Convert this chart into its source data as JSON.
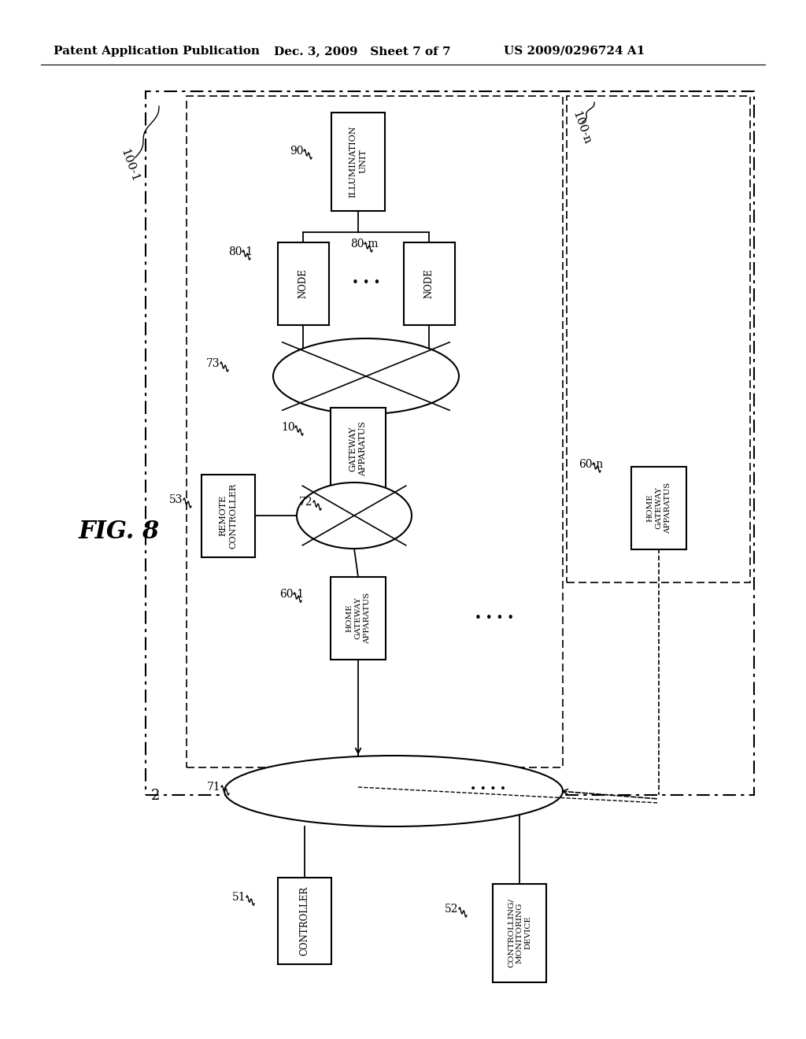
{
  "bg_color": "#ffffff",
  "header_left": "Patent Application Publication",
  "header_mid": "Dec. 3, 2009   Sheet 7 of 7",
  "header_right": "US 2009/0296724 A1",
  "lc": "#000000"
}
